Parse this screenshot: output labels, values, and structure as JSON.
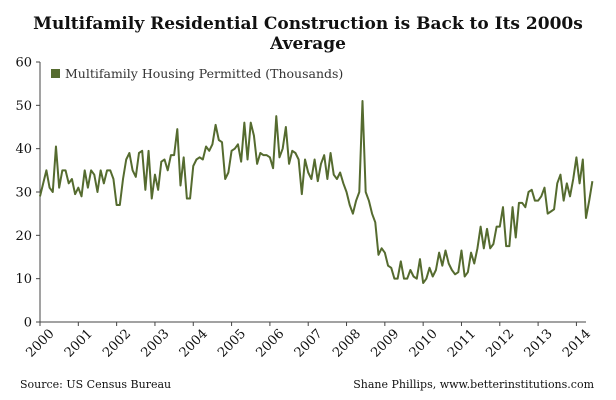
{
  "chart_data": {
    "type": "line",
    "title": "Multifamily Residential Construction is Back to Its 2000s Average",
    "xlabel": "",
    "ylabel": "",
    "ylim": [
      0,
      60
    ],
    "yticks": [
      0,
      10,
      20,
      30,
      40,
      50,
      60
    ],
    "xlim": [
      2000,
      2014.25
    ],
    "xtick_labels": [
      "2000",
      "2001",
      "2002",
      "2003",
      "2004",
      "2005",
      "2006",
      "2007",
      "2008",
      "2009",
      "2010",
      "2011",
      "2012",
      "2013",
      "2014"
    ],
    "grid": false,
    "legend": "top-left",
    "series": [
      {
        "name": "Multifamily Housing Permitted (Thousands)",
        "color": "#556b2f",
        "start_year": 2000,
        "interval": "monthly",
        "values": [
          29,
          32,
          35,
          31,
          30,
          40.5,
          31,
          35,
          35,
          32,
          33,
          29.5,
          31,
          29,
          35,
          31,
          35,
          34,
          30,
          35,
          32,
          35,
          35,
          33,
          27,
          27,
          33,
          37.5,
          39,
          35,
          33.5,
          39,
          39.5,
          30.5,
          39.5,
          28.5,
          34,
          30.5,
          37,
          37.5,
          35,
          38.5,
          38.5,
          44.5,
          31.5,
          38,
          28.5,
          28.5,
          36,
          37.5,
          38,
          37.5,
          40.5,
          39.5,
          41,
          45.5,
          42,
          41.5,
          33,
          34.5,
          39.5,
          40,
          41,
          37,
          46,
          37.5,
          46,
          43,
          36.5,
          39,
          38.5,
          38.5,
          38,
          35.5,
          47.5,
          38,
          40,
          45,
          36.5,
          39.5,
          39,
          37.5,
          29.5,
          37.5,
          34.5,
          33,
          37.5,
          32.5,
          36.5,
          38.5,
          33,
          39,
          34,
          33,
          34.5,
          32,
          30,
          27,
          25,
          28,
          30,
          51,
          30,
          28,
          25,
          23,
          15.5,
          17,
          16,
          13,
          12.5,
          10,
          10,
          14,
          10,
          10,
          12,
          10.5,
          10,
          14.5,
          9,
          10,
          12.5,
          10.5,
          12,
          16,
          13,
          16.5,
          13.5,
          12,
          11,
          11.5,
          16.5,
          10.5,
          11.5,
          16,
          13.5,
          17,
          22,
          17,
          21.5,
          17,
          18,
          22,
          22,
          26.5,
          17.5,
          17.5,
          26.5,
          19.5,
          27.5,
          27.5,
          26.5,
          30,
          30.5,
          28,
          28,
          29,
          31,
          25,
          25.5,
          26,
          32,
          34,
          28,
          32,
          29,
          33,
          38,
          32,
          37.5,
          24,
          28,
          32.5
        ]
      }
    ]
  },
  "source": "Source: US Census Bureau",
  "credit": "Shane Phillips, www.betterinstitutions.com"
}
